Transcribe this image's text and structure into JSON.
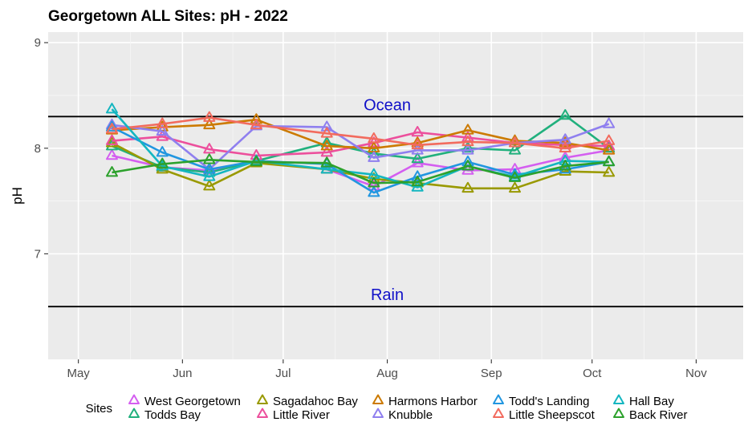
{
  "chart_data": {
    "type": "line",
    "title": "Georgetown ALL Sites: pH - 2022",
    "xlabel": "",
    "ylabel": "pH",
    "x_type": "date",
    "xlim": [
      "2022-04-22",
      "2022-11-15"
    ],
    "ylim": [
      6.0,
      9.1
    ],
    "x_ticks": [
      {
        "date": "2022-05-01",
        "label": "May"
      },
      {
        "date": "2022-06-01",
        "label": "Jun"
      },
      {
        "date": "2022-07-01",
        "label": "Jul"
      },
      {
        "date": "2022-08-01",
        "label": "Aug"
      },
      {
        "date": "2022-09-01",
        "label": "Sep"
      },
      {
        "date": "2022-10-01",
        "label": "Oct"
      },
      {
        "date": "2022-11-01",
        "label": "Nov"
      }
    ],
    "y_ticks": [
      7,
      8,
      9
    ],
    "grid": true,
    "background": "#ebebeb",
    "legend_title": "Sites",
    "legend_position": "bottom",
    "reference_lines": [
      {
        "label": "Ocean",
        "y": 8.3
      },
      {
        "label": "Rain",
        "y": 6.5
      }
    ],
    "series": [
      {
        "name": "West Georgetown",
        "color": "#D45EF0",
        "x": [
          "2022-05-11",
          "2022-05-26",
          "2022-06-09",
          "2022-06-23",
          "2022-07-14",
          "2022-07-28",
          "2022-08-10",
          "2022-08-25",
          "2022-09-08",
          "2022-09-23",
          "2022-10-06"
        ],
        "y": [
          7.93,
          7.82,
          7.79,
          7.87,
          7.8,
          7.64,
          7.86,
          7.79,
          7.8,
          7.91,
          7.98
        ]
      },
      {
        "name": "Todds Bay",
        "color": "#21B07D",
        "x": [
          "2022-05-11",
          "2022-05-26",
          "2022-06-09",
          "2022-06-23",
          "2022-07-14",
          "2022-07-28",
          "2022-08-10",
          "2022-08-25",
          "2022-09-08",
          "2022-09-23",
          "2022-10-06"
        ],
        "y": [
          8.02,
          7.82,
          7.77,
          7.88,
          8.05,
          7.95,
          7.9,
          8.0,
          7.98,
          8.31,
          8.0
        ]
      },
      {
        "name": "Sagadahoc Bay",
        "color": "#999900",
        "x": [
          "2022-05-11",
          "2022-05-26",
          "2022-06-09",
          "2022-06-23",
          "2022-07-14",
          "2022-07-28",
          "2022-08-10",
          "2022-08-25",
          "2022-09-08",
          "2022-09-23",
          "2022-10-06"
        ],
        "y": [
          8.05,
          7.8,
          7.64,
          7.86,
          7.8,
          7.71,
          7.67,
          7.62,
          7.62,
          7.78,
          7.77
        ]
      },
      {
        "name": "Little River",
        "color": "#EC4F9C",
        "x": [
          "2022-05-11",
          "2022-05-26",
          "2022-06-09",
          "2022-06-23",
          "2022-07-14",
          "2022-07-28",
          "2022-08-10",
          "2022-08-25",
          "2022-09-08",
          "2022-09-23",
          "2022-10-06"
        ],
        "y": [
          8.07,
          8.11,
          7.99,
          7.93,
          7.96,
          8.05,
          8.15,
          8.1,
          8.05,
          8.03,
          8.02
        ]
      },
      {
        "name": "Harmons Harbor",
        "color": "#CC7A00",
        "x": [
          "2022-05-11",
          "2022-05-26",
          "2022-06-09",
          "2022-06-23",
          "2022-07-14",
          "2022-07-28",
          "2022-08-10",
          "2022-08-25",
          "2022-09-08",
          "2022-09-23",
          "2022-10-06"
        ],
        "y": [
          8.17,
          8.2,
          8.22,
          8.27,
          8.02,
          8.0,
          8.05,
          8.17,
          8.07,
          8.05,
          7.98
        ]
      },
      {
        "name": "Knubble",
        "color": "#8F7FEF",
        "x": [
          "2022-05-11",
          "2022-05-26",
          "2022-06-09",
          "2022-06-23",
          "2022-07-14",
          "2022-07-28",
          "2022-08-10",
          "2022-08-25",
          "2022-09-08",
          "2022-09-23",
          "2022-10-06"
        ],
        "y": [
          8.22,
          8.16,
          7.8,
          8.21,
          8.2,
          7.91,
          7.98,
          7.98,
          8.05,
          8.08,
          8.23
        ]
      },
      {
        "name": "Todd's Landing",
        "color": "#2196E0",
        "x": [
          "2022-05-11",
          "2022-05-26",
          "2022-06-09",
          "2022-06-23",
          "2022-07-14",
          "2022-07-28",
          "2022-08-10",
          "2022-08-25",
          "2022-09-08",
          "2022-09-23",
          "2022-10-06"
        ],
        "y": [
          8.2,
          7.96,
          7.8,
          7.88,
          7.85,
          7.58,
          7.73,
          7.87,
          7.75,
          7.8,
          7.87
        ]
      },
      {
        "name": "Little Sheepscot",
        "color": "#F26B5E",
        "x": [
          "2022-05-11",
          "2022-05-26",
          "2022-06-09",
          "2022-06-23",
          "2022-07-14",
          "2022-07-28",
          "2022-08-10",
          "2022-08-25",
          "2022-09-08",
          "2022-09-23",
          "2022-10-06"
        ],
        "y": [
          8.18,
          8.23,
          8.29,
          8.22,
          8.14,
          8.09,
          8.03,
          8.06,
          8.05,
          8.0,
          8.07
        ]
      },
      {
        "name": "Hall Bay",
        "color": "#14B6C0",
        "x": [
          "2022-05-11",
          "2022-05-26",
          "2022-06-09",
          "2022-06-23",
          "2022-07-14",
          "2022-07-28",
          "2022-08-10",
          "2022-08-25",
          "2022-09-08",
          "2022-09-23",
          "2022-10-06"
        ],
        "y": [
          8.37,
          7.83,
          7.73,
          7.88,
          7.8,
          7.75,
          7.63,
          7.83,
          7.73,
          7.88,
          7.87
        ]
      },
      {
        "name": "Back River",
        "color": "#2CA12C",
        "x": [
          "2022-05-11",
          "2022-05-26",
          "2022-06-09",
          "2022-06-23",
          "2022-07-14",
          "2022-07-28",
          "2022-08-10",
          "2022-08-25",
          "2022-09-08",
          "2022-09-23",
          "2022-10-06"
        ],
        "y": [
          7.77,
          7.85,
          7.89,
          7.87,
          7.86,
          7.67,
          7.68,
          7.83,
          7.72,
          7.83,
          7.87
        ]
      }
    ]
  }
}
